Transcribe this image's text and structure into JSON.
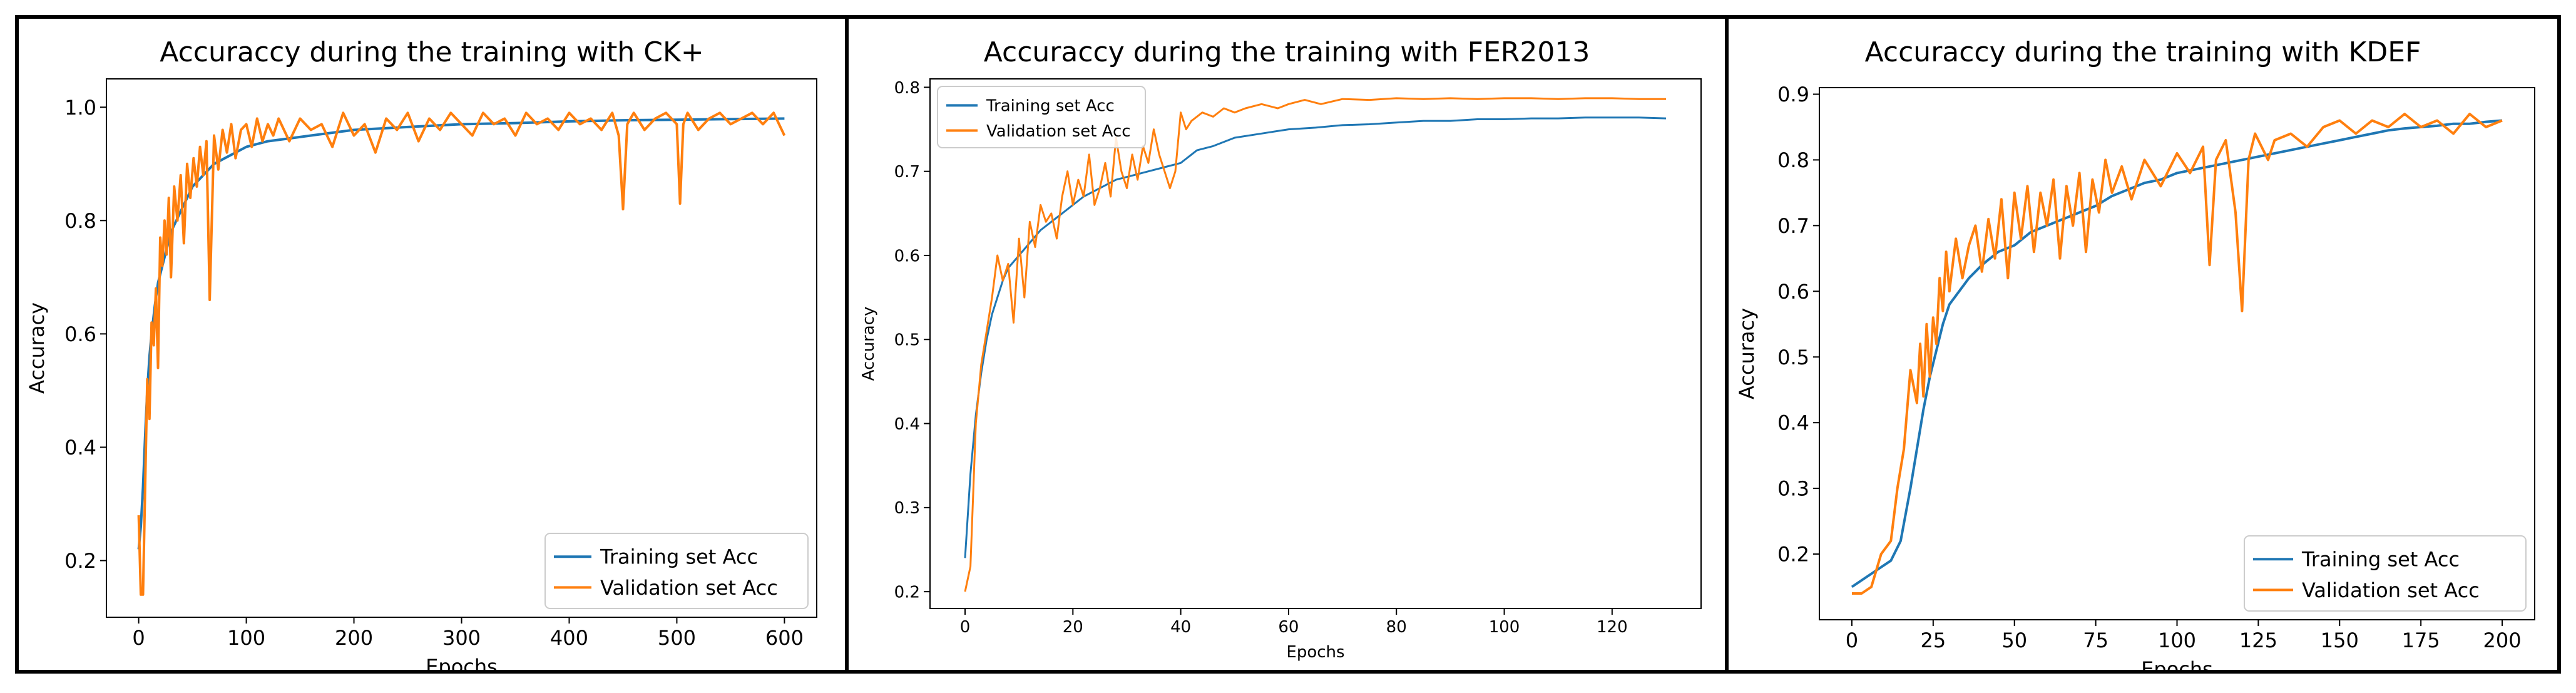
{
  "colors": {
    "train": "#1f77b4",
    "val": "#ff7f0e",
    "frame": "#000000",
    "axis": "#000000"
  },
  "chart_data": [
    {
      "type": "line",
      "title": "Accuraccy during the training with CK+",
      "xlabel": "Epochs",
      "ylabel": "Accuracy",
      "xlim": [
        -30,
        630
      ],
      "ylim": [
        0.1,
        1.05
      ],
      "xticks": [
        0,
        100,
        200,
        300,
        400,
        500,
        600
      ],
      "yticks": [
        0.2,
        0.4,
        0.6,
        0.8,
        1.0
      ],
      "ytick_labels": [
        "0.2",
        "0.4",
        "0.6",
        "0.8",
        "1.0"
      ],
      "legend_position": "lower-right",
      "grid": false,
      "series": [
        {
          "name": "Training set Acc",
          "color": "#1f77b4",
          "x": [
            0,
            2,
            4,
            6,
            8,
            10,
            12,
            15,
            18,
            22,
            26,
            30,
            35,
            40,
            45,
            50,
            55,
            60,
            70,
            80,
            90,
            100,
            120,
            140,
            160,
            180,
            200,
            250,
            300,
            350,
            400,
            450,
            500,
            550,
            600
          ],
          "y": [
            0.22,
            0.26,
            0.33,
            0.42,
            0.5,
            0.56,
            0.6,
            0.65,
            0.69,
            0.72,
            0.75,
            0.78,
            0.8,
            0.82,
            0.84,
            0.86,
            0.87,
            0.88,
            0.9,
            0.91,
            0.92,
            0.93,
            0.94,
            0.945,
            0.95,
            0.955,
            0.96,
            0.965,
            0.97,
            0.972,
            0.975,
            0.977,
            0.978,
            0.979,
            0.98
          ]
        },
        {
          "name": "Validation set Acc",
          "color": "#ff7f0e",
          "x": [
            0,
            2,
            4,
            6,
            8,
            10,
            12,
            14,
            16,
            18,
            20,
            22,
            24,
            26,
            28,
            30,
            33,
            36,
            39,
            42,
            45,
            48,
            51,
            54,
            57,
            60,
            63,
            66,
            70,
            74,
            78,
            82,
            86,
            90,
            95,
            100,
            105,
            110,
            115,
            120,
            125,
            130,
            140,
            150,
            160,
            170,
            180,
            190,
            200,
            210,
            220,
            230,
            240,
            250,
            260,
            270,
            280,
            290,
            300,
            310,
            320,
            330,
            340,
            350,
            360,
            370,
            380,
            390,
            400,
            410,
            420,
            430,
            440,
            446,
            450,
            454,
            460,
            470,
            480,
            490,
            500,
            503,
            506,
            510,
            520,
            530,
            540,
            550,
            560,
            570,
            580,
            590,
            600
          ],
          "y": [
            0.28,
            0.14,
            0.14,
            0.33,
            0.52,
            0.45,
            0.62,
            0.58,
            0.68,
            0.54,
            0.77,
            0.72,
            0.8,
            0.74,
            0.84,
            0.7,
            0.86,
            0.8,
            0.88,
            0.76,
            0.9,
            0.84,
            0.91,
            0.86,
            0.93,
            0.88,
            0.94,
            0.66,
            0.95,
            0.89,
            0.96,
            0.92,
            0.97,
            0.91,
            0.96,
            0.97,
            0.93,
            0.98,
            0.94,
            0.97,
            0.95,
            0.98,
            0.94,
            0.98,
            0.96,
            0.97,
            0.93,
            0.99,
            0.95,
            0.97,
            0.92,
            0.98,
            0.96,
            0.99,
            0.94,
            0.98,
            0.96,
            0.99,
            0.97,
            0.95,
            0.99,
            0.97,
            0.98,
            0.95,
            0.99,
            0.97,
            0.98,
            0.96,
            0.99,
            0.97,
            0.98,
            0.96,
            0.99,
            0.95,
            0.82,
            0.97,
            0.99,
            0.96,
            0.98,
            0.99,
            0.97,
            0.83,
            0.97,
            0.99,
            0.96,
            0.98,
            0.99,
            0.97,
            0.98,
            0.99,
            0.97,
            0.99,
            0.95
          ]
        }
      ]
    },
    {
      "type": "line",
      "title": "Accuraccy during the training with FER2013",
      "xlabel": "Epochs",
      "ylabel": "Accuracy",
      "xlim": [
        -6.5,
        136.5
      ],
      "ylim": [
        0.18,
        0.81
      ],
      "xticks": [
        0,
        20,
        40,
        60,
        80,
        100,
        120
      ],
      "yticks": [
        0.2,
        0.3,
        0.4,
        0.5,
        0.6,
        0.7,
        0.8
      ],
      "ytick_labels": [
        "0.2",
        "0.3",
        "0.4",
        "0.5",
        "0.6",
        "0.7",
        "0.8"
      ],
      "legend_position": "upper-left",
      "grid": false,
      "series": [
        {
          "name": "Training set Acc",
          "color": "#1f77b4",
          "x": [
            0,
            1,
            2,
            3,
            4,
            5,
            6,
            7,
            8,
            10,
            12,
            14,
            16,
            18,
            20,
            22,
            25,
            28,
            31,
            34,
            37,
            40,
            43,
            46,
            50,
            55,
            60,
            65,
            70,
            75,
            80,
            85,
            90,
            95,
            100,
            105,
            110,
            115,
            120,
            125,
            130
          ],
          "y": [
            0.24,
            0.34,
            0.41,
            0.46,
            0.5,
            0.53,
            0.55,
            0.57,
            0.585,
            0.6,
            0.615,
            0.63,
            0.64,
            0.65,
            0.66,
            0.67,
            0.68,
            0.69,
            0.695,
            0.7,
            0.705,
            0.71,
            0.725,
            0.73,
            0.74,
            0.745,
            0.75,
            0.752,
            0.755,
            0.756,
            0.758,
            0.76,
            0.76,
            0.762,
            0.762,
            0.763,
            0.763,
            0.764,
            0.764,
            0.764,
            0.763
          ]
        },
        {
          "name": "Validation set Acc",
          "color": "#ff7f0e",
          "x": [
            0,
            1,
            2,
            3,
            4,
            5,
            6,
            7,
            8,
            9,
            10,
            11,
            12,
            13,
            14,
            15,
            16,
            17,
            18,
            19,
            20,
            21,
            22,
            23,
            24,
            25,
            26,
            27,
            28,
            29,
            30,
            31,
            32,
            33,
            34,
            35,
            36,
            37,
            38,
            39,
            40,
            41,
            42,
            44,
            46,
            48,
            50,
            52,
            55,
            58,
            60,
            63,
            66,
            70,
            75,
            80,
            85,
            90,
            95,
            100,
            105,
            110,
            115,
            120,
            125,
            130
          ],
          "y": [
            0.2,
            0.23,
            0.4,
            0.47,
            0.51,
            0.55,
            0.6,
            0.57,
            0.59,
            0.52,
            0.62,
            0.55,
            0.64,
            0.61,
            0.66,
            0.64,
            0.65,
            0.62,
            0.67,
            0.7,
            0.66,
            0.69,
            0.67,
            0.72,
            0.66,
            0.68,
            0.71,
            0.67,
            0.74,
            0.7,
            0.68,
            0.72,
            0.69,
            0.73,
            0.71,
            0.75,
            0.72,
            0.7,
            0.68,
            0.7,
            0.77,
            0.75,
            0.76,
            0.77,
            0.765,
            0.775,
            0.77,
            0.775,
            0.78,
            0.775,
            0.78,
            0.785,
            0.78,
            0.786,
            0.785,
            0.787,
            0.786,
            0.787,
            0.786,
            0.787,
            0.787,
            0.786,
            0.787,
            0.787,
            0.786,
            0.786
          ]
        }
      ]
    },
    {
      "type": "line",
      "title": "Accuraccy during the training with KDEF",
      "xlabel": "Epochs",
      "ylabel": "Accuracy",
      "xlim": [
        -10,
        210
      ],
      "ylim": [
        0.1,
        0.91
      ],
      "xticks": [
        0,
        25,
        50,
        75,
        100,
        125,
        150,
        175,
        200
      ],
      "yticks": [
        0.2,
        0.3,
        0.4,
        0.5,
        0.6,
        0.7,
        0.8,
        0.9
      ],
      "ytick_labels": [
        "0.2",
        "0.3",
        "0.4",
        "0.5",
        "0.6",
        "0.7",
        "0.8",
        "0.9"
      ],
      "legend_position": "lower-right",
      "grid": false,
      "series": [
        {
          "name": "Training set Acc",
          "color": "#1f77b4",
          "x": [
            0,
            3,
            6,
            9,
            12,
            15,
            18,
            20,
            22,
            24,
            26,
            28,
            30,
            33,
            36,
            40,
            45,
            50,
            55,
            60,
            65,
            70,
            75,
            80,
            85,
            90,
            95,
            100,
            105,
            110,
            115,
            120,
            125,
            130,
            135,
            140,
            145,
            150,
            155,
            160,
            165,
            170,
            175,
            180,
            185,
            190,
            195,
            200
          ],
          "y": [
            0.15,
            0.16,
            0.17,
            0.18,
            0.19,
            0.22,
            0.3,
            0.36,
            0.42,
            0.47,
            0.51,
            0.55,
            0.58,
            0.6,
            0.62,
            0.64,
            0.66,
            0.67,
            0.69,
            0.7,
            0.71,
            0.72,
            0.73,
            0.745,
            0.755,
            0.765,
            0.77,
            0.78,
            0.785,
            0.79,
            0.795,
            0.8,
            0.805,
            0.81,
            0.815,
            0.82,
            0.825,
            0.83,
            0.835,
            0.84,
            0.845,
            0.848,
            0.85,
            0.852,
            0.855,
            0.855,
            0.858,
            0.86
          ]
        },
        {
          "name": "Validation set Acc",
          "color": "#ff7f0e",
          "x": [
            0,
            3,
            6,
            9,
            12,
            14,
            16,
            18,
            20,
            21,
            22,
            23,
            24,
            25,
            26,
            27,
            28,
            29,
            30,
            32,
            34,
            36,
            38,
            40,
            42,
            44,
            46,
            48,
            50,
            52,
            54,
            56,
            58,
            60,
            62,
            64,
            66,
            68,
            70,
            72,
            74,
            76,
            78,
            80,
            83,
            86,
            90,
            95,
            100,
            104,
            106,
            108,
            110,
            112,
            115,
            118,
            120,
            122,
            124,
            126,
            128,
            130,
            135,
            140,
            145,
            150,
            155,
            160,
            165,
            170,
            175,
            180,
            185,
            190,
            195,
            200
          ],
          "y": [
            0.14,
            0.14,
            0.15,
            0.2,
            0.22,
            0.3,
            0.36,
            0.48,
            0.43,
            0.52,
            0.44,
            0.55,
            0.47,
            0.56,
            0.52,
            0.62,
            0.57,
            0.66,
            0.6,
            0.68,
            0.62,
            0.67,
            0.7,
            0.63,
            0.71,
            0.65,
            0.74,
            0.62,
            0.75,
            0.68,
            0.76,
            0.66,
            0.75,
            0.7,
            0.77,
            0.65,
            0.76,
            0.7,
            0.78,
            0.66,
            0.77,
            0.72,
            0.8,
            0.75,
            0.79,
            0.74,
            0.8,
            0.76,
            0.81,
            0.78,
            0.8,
            0.82,
            0.64,
            0.8,
            0.83,
            0.72,
            0.57,
            0.8,
            0.84,
            0.82,
            0.8,
            0.83,
            0.84,
            0.82,
            0.85,
            0.86,
            0.84,
            0.86,
            0.85,
            0.87,
            0.85,
            0.86,
            0.84,
            0.87,
            0.85,
            0.86
          ]
        }
      ]
    }
  ]
}
